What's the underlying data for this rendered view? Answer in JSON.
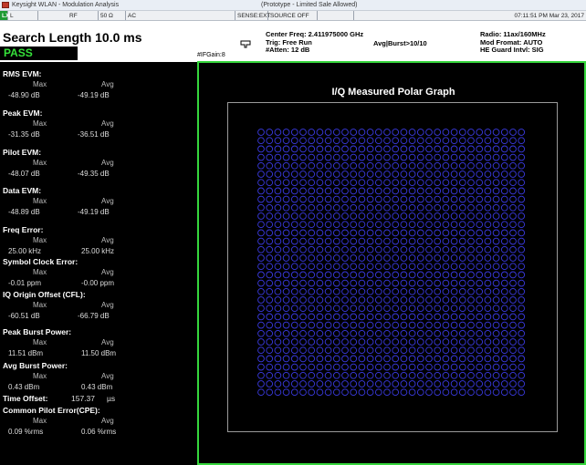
{
  "window": {
    "app_title": "Keysight WLAN - Modulation Analysis",
    "center_title": "(Prototype - Limited Sale Allowed)"
  },
  "status_strip": {
    "cells": [
      "LXI",
      "L",
      "RF",
      "50 Ω",
      "AC",
      "SENSE:EXT",
      "SOURCE OFF",
      "",
      "07:11:51 PM Mar 23, 2017"
    ]
  },
  "header": {
    "search_length": "Search Length 10.0 ms",
    "pass_label": "PASS",
    "if_gain": "#IFGain:8",
    "center_freq": "Center Freq: 2.411975000 GHz",
    "trig": "Trig: Free Run",
    "atten": "#Atten: 12 dB",
    "avg_burst": "Avg|Burst>10/10",
    "radio": "Radio: 11ax/160MHz",
    "mod_format": "Mod Fromat: AUTO",
    "guard": "HE Guard Intvl: SIG"
  },
  "metrics": [
    {
      "title": "RMS EVM:",
      "max_label": "Max",
      "avg_label": "Avg",
      "max": "-48.90  dB",
      "avg": "-49.19  dB"
    },
    {
      "title": "Peak EVM:",
      "max_label": "Max",
      "avg_label": "Avg",
      "max": "-31.35  dB",
      "avg": "-36.51  dB"
    },
    {
      "title": "Pilot EVM:",
      "max_label": "Max",
      "avg_label": "Avg",
      "max": "-48.07  dB",
      "avg": "-49.35  dB"
    },
    {
      "title": "Data EVM:",
      "max_label": "Max",
      "avg_label": "Avg",
      "max": "-48.89  dB",
      "avg": "-49.19  dB"
    },
    {
      "title": "Freq Error:",
      "max_label": "Max",
      "avg_label": "Avg",
      "max": "25.00 kHz",
      "avg": "25.00 kHz"
    },
    {
      "title": "Symbol Clock Error:",
      "max_label": "Max",
      "avg_label": "Avg",
      "max": "-0.01  ppm",
      "avg": "-0.00  ppm"
    },
    {
      "title": "IQ Origin Offset (CFL):",
      "max_label": "Max",
      "avg_label": "Avg",
      "max": "-60.51  dB",
      "avg": "-66.79  dB"
    },
    {
      "title": "Peak Burst Power:",
      "max_label": "Max",
      "avg_label": "Avg",
      "max": "11.51  dBm",
      "avg": "11.50  dBm"
    },
    {
      "title": "Avg Burst Power:",
      "max_label": "Max",
      "avg_label": "Avg",
      "max": "0.43  dBm",
      "avg": "0.43  dBm"
    }
  ],
  "time_offset": {
    "label": "Time Offset:",
    "value": "157.37",
    "unit": "µs"
  },
  "cpe": {
    "title": "Common Pilot Error(CPE):",
    "max_label": "Max",
    "avg_label": "Avg",
    "max": "0.09  %rms",
    "avg": "0.06  %rms"
  },
  "graph": {
    "title": "I/Q Measured Polar Graph",
    "constellation": "1024-QAM",
    "grid_size": 32,
    "symbol_color": "#3a3ae0"
  },
  "colors": {
    "pass": "#35e23a",
    "frame": "#36d63d",
    "symbol": "#3a3ae0"
  }
}
